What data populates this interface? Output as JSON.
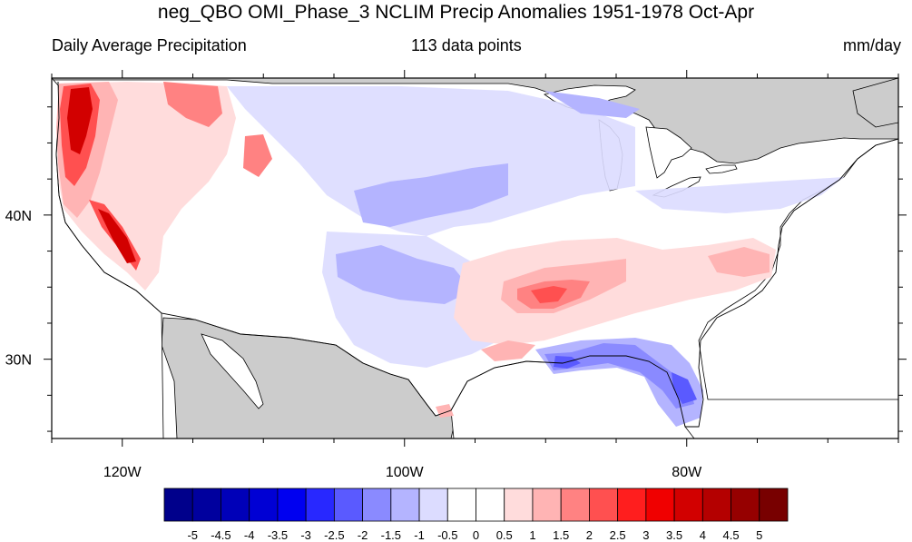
{
  "title": "neg_QBO OMI_Phase_3 NCLIM Precip Anomalies 1951-1978 Oct-Apr",
  "left_subtitle": "Daily Average Precipitation",
  "center_subtitle": "113 data points",
  "right_subtitle": "mm/day",
  "map": {
    "lon_range": [
      -125,
      -65
    ],
    "lat_range": [
      24.5,
      49.5
    ],
    "x_ticks": [
      {
        "lon": -120,
        "label": "120W"
      },
      {
        "lon": -100,
        "label": "100W"
      },
      {
        "lon": -80,
        "label": "80W"
      }
    ],
    "y_ticks": [
      {
        "lat": 30,
        "label": "30N"
      },
      {
        "lat": 40,
        "label": "40N"
      }
    ],
    "land_mask_color": "#cccccc"
  },
  "colorbar": {
    "labels": [
      "-5",
      "-4.5",
      "-4",
      "-3.5",
      "-3",
      "-2.5",
      "-2",
      "-1.5",
      "-1",
      "-0.5",
      "0",
      "0.5",
      "1",
      "1.5",
      "2",
      "2.5",
      "3",
      "3.5",
      "4",
      "4.5",
      "5"
    ],
    "colors": [
      "#00008b",
      "#00009e",
      "#0000b8",
      "#0000d4",
      "#0000f0",
      "#2828ff",
      "#5a5aff",
      "#8a8aff",
      "#b4b4ff",
      "#dcdcff",
      "#ffffff",
      "#ffffff",
      "#ffdcdc",
      "#ffb4b4",
      "#ff8282",
      "#ff5050",
      "#ff1e1e",
      "#f00000",
      "#d20000",
      "#b40000",
      "#960000",
      "#780000"
    ]
  }
}
